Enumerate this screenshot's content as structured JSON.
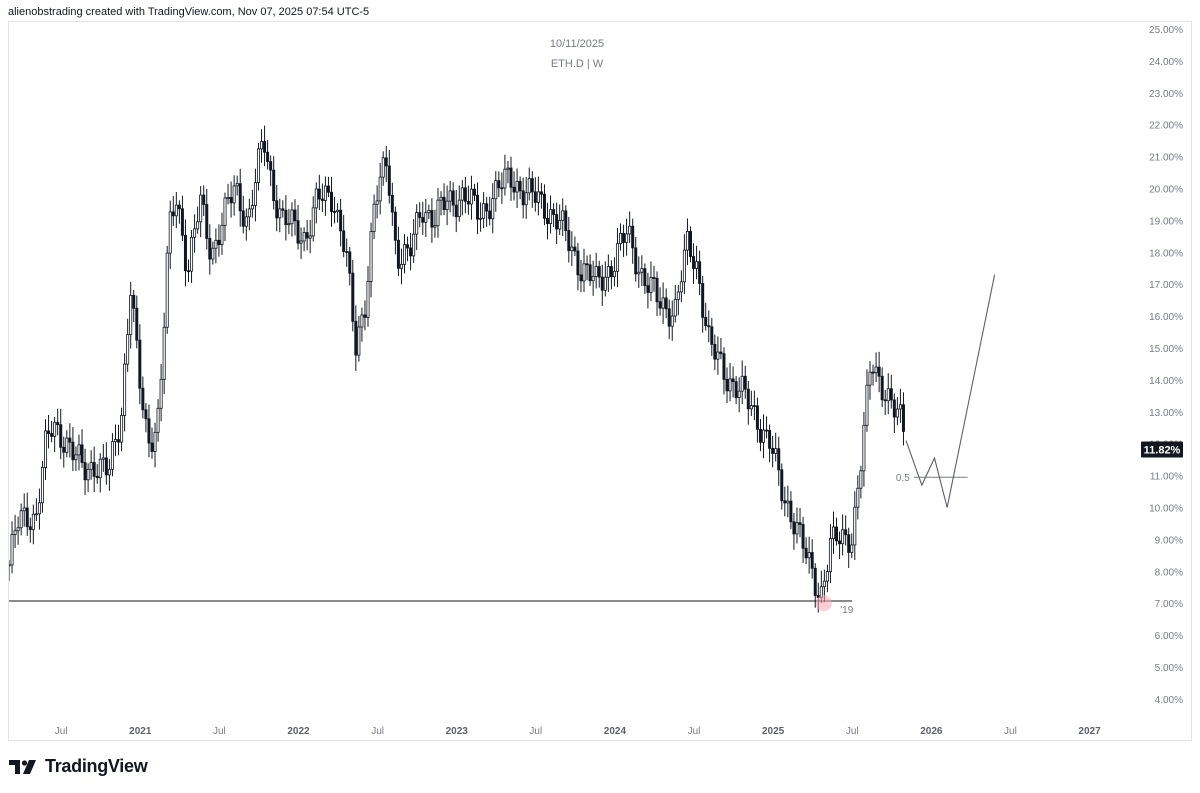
{
  "header": {
    "attribution": "alienobstrading created with TradingView.com, Nov 07, 2025 07:54 UTC-5"
  },
  "footer": {
    "brand": "TradingView"
  },
  "chart_data": {
    "type": "candlestick",
    "date": "10/11/2025",
    "symbol": "ETH.D | W",
    "last_price_label": "11.82%",
    "y_ticks": [
      "25.00%",
      "24.00%",
      "23.00%",
      "22.00%",
      "21.00%",
      "20.00%",
      "19.00%",
      "18.00%",
      "17.00%",
      "16.00%",
      "15.00%",
      "14.00%",
      "13.00%",
      "12.00%",
      "11.00%",
      "10.00%",
      "9.00%",
      "8.00%",
      "7.00%",
      "6.00%",
      "5.00%",
      "4.00%"
    ],
    "x_ticks": [
      {
        "label": "Jul",
        "date": "2020.5",
        "year": false
      },
      {
        "label": "2021",
        "date": "2021.0",
        "year": true
      },
      {
        "label": "Jul",
        "date": "2021.5",
        "year": false
      },
      {
        "label": "2022",
        "date": "2022.0",
        "year": true
      },
      {
        "label": "Jul",
        "date": "2022.5",
        "year": false
      },
      {
        "label": "2023",
        "date": "2023.0",
        "year": true
      },
      {
        "label": "Jul",
        "date": "2023.5",
        "year": false
      },
      {
        "label": "2024",
        "date": "2024.0",
        "year": true
      },
      {
        "label": "Jul",
        "date": "2024.5",
        "year": false
      },
      {
        "label": "2025",
        "date": "2025.0",
        "year": true
      },
      {
        "label": "Jul",
        "date": "2025.5",
        "year": false
      },
      {
        "label": "2026",
        "date": "2026.0",
        "year": true
      },
      {
        "label": "Jul",
        "date": "2026.5",
        "year": false
      },
      {
        "label": "2027",
        "date": "2027.0",
        "year": true
      }
    ],
    "y_range": [
      3.6,
      25.0
    ],
    "x_range": [
      2020.17,
      2027.3
    ],
    "support_level": {
      "value": 7.07,
      "label": "'19"
    },
    "fib_level": {
      "value": 10.95,
      "label": "0.5"
    },
    "low_marker": {
      "x": 2025.32,
      "y": 7.0
    },
    "series": [
      {
        "name": "ETH.D",
        "points": [
          [
            2020.17,
            8.2
          ],
          [
            2020.22,
            9.4
          ],
          [
            2020.28,
            9.8
          ],
          [
            2020.34,
            9.7
          ],
          [
            2020.4,
            11.8
          ],
          [
            2020.45,
            12.6
          ],
          [
            2020.52,
            12.2
          ],
          [
            2020.58,
            11.6
          ],
          [
            2020.64,
            11.2
          ],
          [
            2020.72,
            11.4
          ],
          [
            2020.8,
            11.0
          ],
          [
            2020.88,
            13.0
          ],
          [
            2020.94,
            17.0
          ],
          [
            2020.99,
            14.0
          ],
          [
            2021.05,
            12.0
          ],
          [
            2021.12,
            13.0
          ],
          [
            2021.18,
            18.5
          ],
          [
            2021.23,
            19.8
          ],
          [
            2021.3,
            17.5
          ],
          [
            2021.38,
            19.5
          ],
          [
            2021.45,
            18.0
          ],
          [
            2021.52,
            19.0
          ],
          [
            2021.6,
            20.0
          ],
          [
            2021.68,
            19.0
          ],
          [
            2021.78,
            21.5
          ],
          [
            2021.84,
            20.0
          ],
          [
            2021.9,
            19.0
          ],
          [
            2021.96,
            18.8
          ],
          [
            2022.04,
            18.5
          ],
          [
            2022.12,
            19.6
          ],
          [
            2022.22,
            19.8
          ],
          [
            2022.3,
            18.0
          ],
          [
            2022.36,
            14.9
          ],
          [
            2022.42,
            16.5
          ],
          [
            2022.48,
            19.5
          ],
          [
            2022.56,
            20.8
          ],
          [
            2022.62,
            18.0
          ],
          [
            2022.7,
            17.8
          ],
          [
            2022.78,
            19.5
          ],
          [
            2022.86,
            19.0
          ],
          [
            2022.94,
            19.6
          ],
          [
            2023.04,
            19.8
          ],
          [
            2023.14,
            19.2
          ],
          [
            2023.24,
            19.8
          ],
          [
            2023.34,
            20.4
          ],
          [
            2023.44,
            19.8
          ],
          [
            2023.54,
            19.6
          ],
          [
            2023.66,
            18.8
          ],
          [
            2023.78,
            17.6
          ],
          [
            2023.88,
            17.0
          ],
          [
            2023.98,
            17.6
          ],
          [
            2024.08,
            18.6
          ],
          [
            2024.18,
            17.2
          ],
          [
            2024.28,
            16.4
          ],
          [
            2024.38,
            16.2
          ],
          [
            2024.46,
            18.2
          ],
          [
            2024.52,
            17.6
          ],
          [
            2024.6,
            15.0
          ],
          [
            2024.7,
            14.2
          ],
          [
            2024.8,
            13.6
          ],
          [
            2024.9,
            12.8
          ],
          [
            2024.98,
            12.0
          ],
          [
            2025.06,
            10.4
          ],
          [
            2025.14,
            9.6
          ],
          [
            2025.22,
            8.2
          ],
          [
            2025.3,
            7.3
          ],
          [
            2025.36,
            8.8
          ],
          [
            2025.44,
            9.0
          ],
          [
            2025.5,
            9.2
          ],
          [
            2025.56,
            11.6
          ],
          [
            2025.62,
            14.6
          ],
          [
            2025.7,
            13.8
          ],
          [
            2025.76,
            13.0
          ],
          [
            2025.82,
            12.6
          ],
          [
            2025.84,
            11.82
          ]
        ]
      },
      {
        "name": "projection",
        "points": [
          [
            2025.84,
            12.1
          ],
          [
            2025.94,
            10.7
          ],
          [
            2026.02,
            11.55
          ],
          [
            2026.1,
            10.0
          ],
          [
            2026.4,
            17.3
          ]
        ]
      }
    ]
  }
}
